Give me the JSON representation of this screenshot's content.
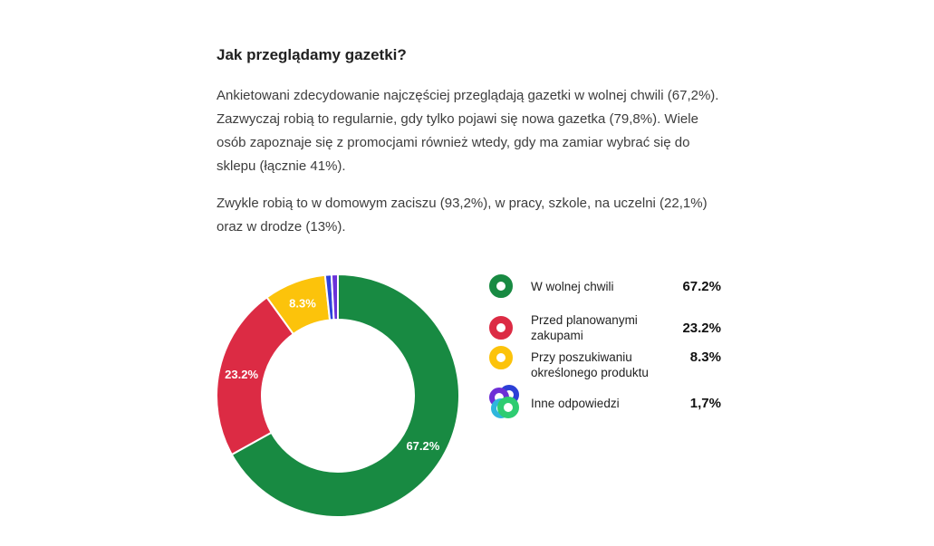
{
  "article": {
    "title": "Jak przeglądamy gazetki?",
    "paragraphs": [
      "Ankietowani zdecydowanie najczęściej przeglądają gazetki w wolnej chwili (67,2%). Zazwyczaj robią to regularnie, gdy tylko pojawi się nowa gazetka (79,8%). Wiele osób zapoznaje się z promocjami również wtedy, gdy ma zamiar wybrać się do sklepu (łącznie 41%).",
      "Zwykle robią to w domowym zaciszu (93,2%), w pracy, szkole, na uczelni (22,1%) oraz w drodze (13%)."
    ]
  },
  "chart_data": {
    "type": "pie",
    "variant": "donut",
    "direction": "clockwise",
    "start_angle_deg": 0,
    "hole_ratio": 0.63,
    "legend_position": "right",
    "unit": "%",
    "slices": [
      {
        "label": "W wolnej chwili",
        "value": 67.2,
        "display": "67.2%",
        "color": "#188a42",
        "show_label_on_slice": true
      },
      {
        "label": "Przed planowanymi zakupami",
        "value": 23.2,
        "display": "23.2%",
        "color": "#dc2b44",
        "show_label_on_slice": true
      },
      {
        "label": "Przy poszukiwaniu określonego produktu",
        "value": 8.3,
        "display": "8.3%",
        "color": "#fcc30b",
        "show_label_on_slice": true
      },
      {
        "label": "Inne odpowiedzi",
        "value": 1.7,
        "display": "1,7%",
        "color": "#2f43dc",
        "show_label_on_slice": false,
        "sub_slices": [
          {
            "value": 0.85,
            "color": "#2f43dc"
          },
          {
            "value": 0.85,
            "color": "#6a32d9"
          }
        ],
        "legend_icon_colors": {
          "blue": "#2b3fd6",
          "purple": "#6d2ed6",
          "cyan": "#2fb6dc",
          "green": "#2ecc71"
        }
      }
    ]
  }
}
